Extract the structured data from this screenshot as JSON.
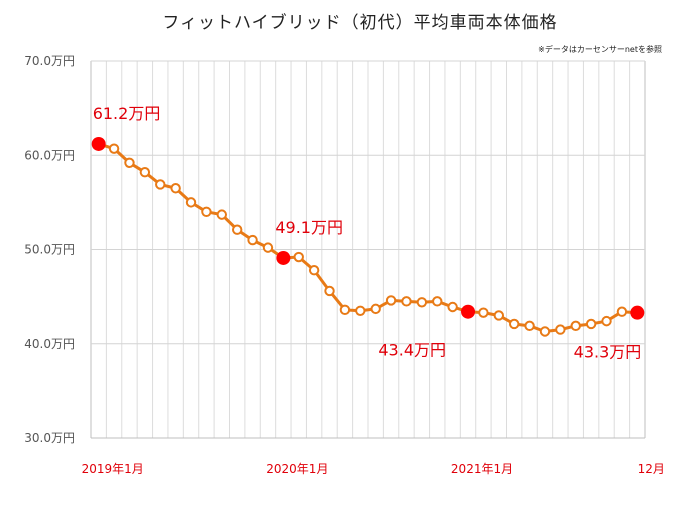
{
  "chart_data": {
    "type": "line",
    "title": "フィットハイブリッド（初代）平均車両本体価格",
    "source_note": "※データはカーセンサーnetを参照",
    "xlabel": "",
    "ylabel": "",
    "ylim": [
      30,
      70
    ],
    "y_ticks": [
      "30.0万円",
      "40.0万円",
      "50.0万円",
      "60.0万円",
      "70.0万円"
    ],
    "y_tick_values": [
      30,
      40,
      50,
      60,
      70
    ],
    "x_tick_labels": [
      {
        "index": 0,
        "label": "2019年1月"
      },
      {
        "index": 12,
        "label": "2020年1月"
      },
      {
        "index": 24,
        "label": "2021年1月"
      },
      {
        "index": 35,
        "label": "12月"
      }
    ],
    "series": [
      {
        "name": "平均車両本体価格",
        "color": "#e87a16",
        "values": [
          61.2,
          60.7,
          59.2,
          58.2,
          56.9,
          56.5,
          55.0,
          54.0,
          53.7,
          52.1,
          51.0,
          50.2,
          49.1,
          49.2,
          47.8,
          45.6,
          43.6,
          43.5,
          43.7,
          44.6,
          44.5,
          44.4,
          44.5,
          43.9,
          43.4,
          43.3,
          43.0,
          42.1,
          41.9,
          41.3,
          41.5,
          41.9,
          42.1,
          42.4,
          43.4,
          43.3
        ]
      }
    ],
    "highlights": [
      {
        "index": 0,
        "label": "61.2万円"
      },
      {
        "index": 12,
        "label": "49.1万円"
      },
      {
        "index": 24,
        "label": "43.4万円"
      },
      {
        "index": 35,
        "label": "43.3万円"
      }
    ],
    "highlight_color": "#ff0000",
    "label_color": "#e0000a"
  }
}
